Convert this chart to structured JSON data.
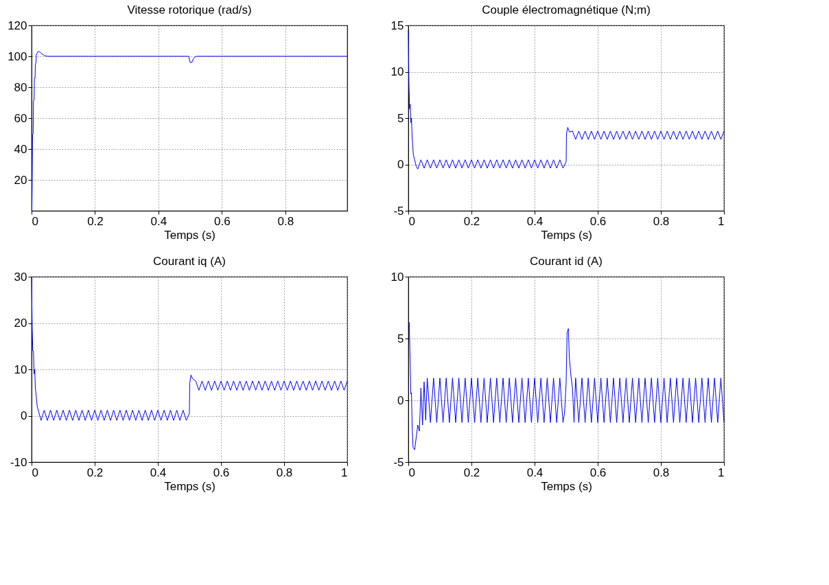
{
  "chart_data": [
    {
      "type": "line",
      "title": "Vitesse rotorique (rad/s)",
      "xlabel": "Temps (s)",
      "xlim": [
        0,
        0.995
      ],
      "xticks": [
        0,
        0.2,
        0.4,
        0.6,
        0.8
      ],
      "ylim": [
        0,
        120
      ],
      "yticks": [
        20,
        40,
        60,
        80,
        100,
        120
      ],
      "grid": true,
      "series": [
        {
          "color": "#0000ff",
          "x": [
            0,
            0.001,
            0.002,
            0.003,
            0.005,
            0.006,
            0.008,
            0.009,
            0.011,
            0.012,
            0.014,
            0.015,
            0.02,
            0.025,
            0.03,
            0.04,
            0.05,
            0.495,
            0.5,
            0.505,
            0.51,
            0.515,
            0.52,
            0.995
          ],
          "values": [
            0,
            0,
            20,
            49,
            50,
            71,
            72,
            86,
            86,
            95,
            96,
            101,
            103,
            103,
            102,
            100.5,
            100,
            100,
            96,
            96,
            98.5,
            99.5,
            100,
            100
          ]
        }
      ]
    },
    {
      "type": "line",
      "title": "Couple électromagnétique (N;m)",
      "xlabel": "Temps (s)",
      "xlim": [
        0,
        1
      ],
      "xticks": [
        0,
        0.2,
        0.4,
        0.6,
        0.8,
        1
      ],
      "ylim": [
        -5,
        15
      ],
      "yticks": [
        -5,
        0,
        5,
        10,
        15
      ],
      "grid": true,
      "series": [
        {
          "color": "#0000ff",
          "x": [
            0,
            0.002,
            0.004,
            0.006,
            0.008,
            0.01,
            0.012,
            0.014,
            0.016,
            0.02,
            0.025,
            0.03,
            0.04,
            0.05,
            0.06,
            0.07,
            0.08,
            0.09,
            0.1,
            0.11,
            0.12,
            0.13,
            0.14,
            0.15,
            0.16,
            0.17,
            0.18,
            0.19,
            0.2,
            0.21,
            0.22,
            0.23,
            0.24,
            0.25,
            0.26,
            0.27,
            0.28,
            0.29,
            0.3,
            0.31,
            0.32,
            0.33,
            0.34,
            0.35,
            0.36,
            0.37,
            0.38,
            0.39,
            0.4,
            0.41,
            0.42,
            0.43,
            0.44,
            0.45,
            0.46,
            0.47,
            0.48,
            0.49,
            0.5,
            0.501,
            0.505,
            0.51,
            0.52,
            0.53,
            0.54,
            0.55,
            0.56,
            0.57,
            0.58,
            0.59,
            0.6,
            0.61,
            0.62,
            0.63,
            0.64,
            0.65,
            0.66,
            0.67,
            0.68,
            0.69,
            0.7,
            0.71,
            0.72,
            0.73,
            0.74,
            0.75,
            0.76,
            0.77,
            0.78,
            0.79,
            0.8,
            0.81,
            0.82,
            0.83,
            0.84,
            0.85,
            0.86,
            0.87,
            0.88,
            0.89,
            0.9,
            0.91,
            0.92,
            0.93,
            0.94,
            0.95,
            0.96,
            0.97,
            0.98,
            0.99,
            1
          ],
          "values": [
            14.5,
            8.7,
            6,
            6.5,
            4.5,
            5,
            3,
            2,
            1,
            0.5,
            -0.2,
            -0.5,
            0.5,
            -0.4,
            0.5,
            -0.4,
            0.5,
            -0.4,
            0.5,
            -0.4,
            0.5,
            -0.4,
            0.5,
            -0.4,
            0.5,
            -0.4,
            0.5,
            -0.4,
            0.5,
            -0.4,
            0.5,
            -0.4,
            0.5,
            -0.4,
            0.5,
            -0.4,
            0.5,
            -0.4,
            0.5,
            -0.4,
            0.5,
            -0.4,
            0.5,
            -0.4,
            0.5,
            -0.4,
            0.5,
            -0.4,
            0.5,
            -0.4,
            0.5,
            -0.4,
            0.5,
            -0.4,
            0.5,
            -0.4,
            0.5,
            -0.4,
            0.3,
            3.3,
            4,
            3.5,
            3.6,
            2.7,
            3.6,
            2.7,
            3.6,
            2.7,
            3.6,
            2.7,
            3.6,
            2.7,
            3.6,
            2.7,
            3.6,
            2.7,
            3.6,
            2.7,
            3.6,
            2.7,
            3.6,
            2.7,
            3.6,
            2.7,
            3.6,
            2.7,
            3.6,
            2.7,
            3.6,
            2.7,
            3.6,
            2.7,
            3.6,
            2.7,
            3.6,
            2.7,
            3.6,
            2.7,
            3.6,
            2.7,
            3.6,
            2.7,
            3.6,
            2.7,
            3.6,
            2.7,
            3.6,
            2.7,
            3.6,
            2.7,
            3.6
          ]
        }
      ]
    },
    {
      "type": "line",
      "title": "Courant iq (A)",
      "xlabel": "Temps (s)",
      "xlim": [
        0,
        1
      ],
      "xticks": [
        0,
        0.2,
        0.4,
        0.6,
        0.8,
        1
      ],
      "ylim": [
        -10,
        30
      ],
      "yticks": [
        -10,
        0,
        10,
        20,
        30
      ],
      "grid": true,
      "series": [
        {
          "color": "#0000ff",
          "x": [
            0,
            0.002,
            0.004,
            0.006,
            0.008,
            0.01,
            0.012,
            0.015,
            0.018,
            0.022,
            0.03,
            0.04,
            0.05,
            0.06,
            0.07,
            0.08,
            0.09,
            0.1,
            0.11,
            0.12,
            0.13,
            0.14,
            0.15,
            0.16,
            0.17,
            0.18,
            0.19,
            0.2,
            0.21,
            0.22,
            0.23,
            0.24,
            0.25,
            0.26,
            0.27,
            0.28,
            0.29,
            0.3,
            0.31,
            0.32,
            0.33,
            0.34,
            0.35,
            0.36,
            0.37,
            0.38,
            0.39,
            0.4,
            0.41,
            0.42,
            0.43,
            0.44,
            0.45,
            0.46,
            0.47,
            0.48,
            0.49,
            0.5,
            0.501,
            0.505,
            0.51,
            0.52,
            0.53,
            0.54,
            0.55,
            0.56,
            0.57,
            0.58,
            0.59,
            0.6,
            0.61,
            0.62,
            0.63,
            0.64,
            0.65,
            0.66,
            0.67,
            0.68,
            0.69,
            0.7,
            0.71,
            0.72,
            0.73,
            0.74,
            0.75,
            0.76,
            0.77,
            0.78,
            0.79,
            0.8,
            0.81,
            0.82,
            0.83,
            0.84,
            0.85,
            0.86,
            0.87,
            0.88,
            0.89,
            0.9,
            0.91,
            0.92,
            0.93,
            0.94,
            0.95,
            0.96,
            0.97,
            0.98,
            0.99,
            1
          ],
          "values": [
            30,
            19,
            14,
            14,
            9,
            10,
            6,
            4,
            2,
            1,
            -1,
            1.2,
            -1,
            1.2,
            -1,
            1.2,
            -1,
            1.2,
            -1,
            1.2,
            -1,
            1.2,
            -1,
            1.2,
            -1,
            1.2,
            -1,
            1.2,
            -1,
            1.2,
            -1,
            1.2,
            -1,
            1.2,
            -1,
            1.2,
            -1,
            1.2,
            -1,
            1.2,
            -1,
            1.2,
            -1,
            1.2,
            -1,
            1.2,
            -1,
            1.2,
            -1,
            1.2,
            -1,
            1.2,
            -1,
            1.2,
            -1,
            1.2,
            -1,
            0.5,
            7,
            8.8,
            8,
            7.5,
            5.5,
            7.5,
            5.5,
            7.5,
            5.5,
            7.5,
            5.5,
            7.5,
            5.5,
            7.5,
            5.5,
            7.5,
            5.5,
            7.5,
            5.5,
            7.5,
            5.5,
            7.5,
            5.5,
            7.5,
            5.5,
            7.5,
            5.5,
            7.5,
            5.5,
            7.5,
            5.5,
            7.5,
            5.5,
            7.5,
            5.5,
            7.5,
            5.5,
            7.5,
            5.5,
            7.5,
            5.5,
            7.5,
            5.5,
            7.5,
            5.5,
            7.5,
            5.5,
            7.5,
            5.5,
            7.5,
            5.5,
            7.5
          ]
        }
      ]
    },
    {
      "type": "line",
      "title": "Courant id (A)",
      "xlabel": "Temps (s)",
      "xlim": [
        0,
        1
      ],
      "xticks": [
        0,
        0.2,
        0.4,
        0.6,
        0.8,
        1
      ],
      "ylim": [
        -5,
        10
      ],
      "yticks": [
        -5,
        0,
        5,
        10
      ],
      "grid": true,
      "series": [
        {
          "color": "#0000ff",
          "x": [
            0,
            0.003,
            0.005,
            0.008,
            0.01,
            0.012,
            0.015,
            0.02,
            0.025,
            0.03,
            0.035,
            0.04,
            0.045,
            0.05,
            0.055,
            0.06,
            0.07,
            0.08,
            0.09,
            0.1,
            0.11,
            0.12,
            0.13,
            0.14,
            0.15,
            0.16,
            0.17,
            0.18,
            0.19,
            0.2,
            0.21,
            0.22,
            0.23,
            0.24,
            0.25,
            0.26,
            0.27,
            0.28,
            0.29,
            0.3,
            0.31,
            0.32,
            0.33,
            0.34,
            0.35,
            0.36,
            0.37,
            0.38,
            0.39,
            0.4,
            0.41,
            0.42,
            0.43,
            0.44,
            0.45,
            0.46,
            0.47,
            0.48,
            0.49,
            0.495,
            0.5,
            0.503,
            0.507,
            0.51,
            0.515,
            0.52,
            0.525,
            0.53,
            0.54,
            0.55,
            0.56,
            0.57,
            0.58,
            0.59,
            0.6,
            0.61,
            0.62,
            0.63,
            0.64,
            0.65,
            0.66,
            0.67,
            0.68,
            0.69,
            0.7,
            0.71,
            0.72,
            0.73,
            0.74,
            0.75,
            0.76,
            0.77,
            0.78,
            0.79,
            0.8,
            0.81,
            0.82,
            0.83,
            0.84,
            0.85,
            0.86,
            0.87,
            0.88,
            0.89,
            0.9,
            0.91,
            0.92,
            0.93,
            0.94,
            0.95,
            0.96,
            0.97,
            0.98,
            0.99,
            1
          ],
          "values": [
            6,
            6.3,
            4,
            0.5,
            0.6,
            -2,
            -3.8,
            -4,
            -3,
            -2,
            -2.5,
            1,
            -2,
            1.5,
            -1.6,
            1.8,
            -1.8,
            1.8,
            -1.8,
            1.8,
            -1.8,
            1.8,
            -1.8,
            1.8,
            -1.8,
            1.8,
            -1.8,
            1.8,
            -1.8,
            1.8,
            -1.8,
            1.8,
            -1.8,
            1.8,
            -1.8,
            1.8,
            -1.8,
            1.8,
            -1.8,
            1.8,
            -1.8,
            1.8,
            -1.8,
            1.8,
            -1.8,
            1.8,
            -1.8,
            1.8,
            -1.8,
            1.8,
            -1.8,
            1.8,
            -1.8,
            1.8,
            -1.8,
            1.8,
            -1.8,
            1.8,
            -1.8,
            -1,
            1.5,
            5.5,
            5.8,
            3.5,
            2,
            1,
            -1.8,
            1.8,
            -1.8,
            1.8,
            -1.8,
            1.8,
            -1.8,
            1.8,
            -1.8,
            1.8,
            -1.8,
            1.8,
            -1.8,
            1.8,
            -1.8,
            1.8,
            -1.8,
            1.8,
            -1.8,
            1.8,
            -1.8,
            1.8,
            -1.8,
            1.8,
            -1.8,
            1.8,
            -1.8,
            1.8,
            -1.8,
            1.8,
            -1.8,
            1.8,
            -1.8,
            1.8,
            -1.8,
            1.8,
            -1.8,
            1.8,
            -1.8,
            1.8,
            -1.8,
            1.8,
            -1.8,
            1.8,
            -1.8,
            1.8,
            -1.8,
            1.8,
            -1.8
          ]
        }
      ]
    }
  ]
}
